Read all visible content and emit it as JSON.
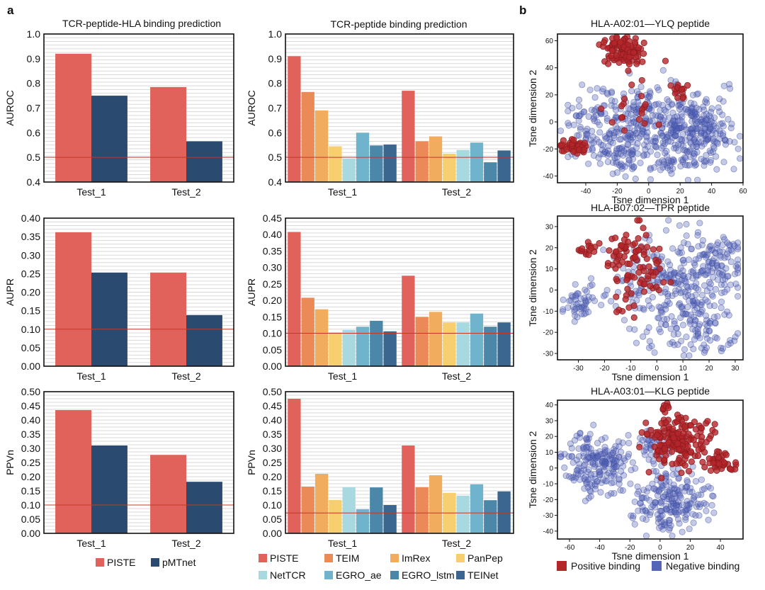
{
  "panel_labels": {
    "a": "a",
    "b": "b"
  },
  "chart_titles": {
    "left": "TCR-peptide-HLA binding prediction",
    "middle": "TCR-peptide binding prediction"
  },
  "colors": {
    "PISTE": "#E0625A",
    "pMTnet": "#2B4A6F",
    "TEIM": "#EB8A57",
    "ImRex": "#F2AC5E",
    "PanPep": "#F7CF6E",
    "NetTCR": "#A8D9E0",
    "EGRO_ae": "#6FB4CC",
    "EGRO_lstm": "#4A87A8",
    "TEINet": "#3A6690",
    "baseline": "#C0392B",
    "positive": "#B5262B",
    "negative": "#5565B8"
  },
  "legend_left": [
    "PISTE",
    "pMTnet"
  ],
  "legend_middle": [
    "PISTE",
    "TEIM",
    "ImRex",
    "PanPep",
    "NetTCR",
    "EGRO_ae",
    "EGRO_lstm",
    "TEINet"
  ],
  "legend_scatter": {
    "positive": "Positive binding",
    "negative": "Negative binding"
  },
  "chart_data": [
    {
      "id": "a1",
      "type": "bar",
      "title": "TCR-peptide-HLA binding prediction",
      "ylabel": "AUROC",
      "ylim": [
        0.4,
        1.0
      ],
      "yticks": [
        "0.4",
        "0.5",
        "0.6",
        "0.7",
        "0.8",
        "0.9",
        "1.0"
      ],
      "tick_values": [
        0.4,
        0.5,
        0.6,
        0.7,
        0.8,
        0.9,
        1.0
      ],
      "categories": [
        "Test_1",
        "Test_2"
      ],
      "baseline": 0.5,
      "series": [
        {
          "name": "PISTE",
          "values": [
            0.92,
            0.785
          ]
        },
        {
          "name": "pMTnet",
          "values": [
            0.75,
            0.565
          ]
        }
      ]
    },
    {
      "id": "a2",
      "type": "bar",
      "title": "TCR-peptide binding prediction",
      "ylabel": "AUROC",
      "ylim": [
        0.4,
        1.0
      ],
      "yticks": [
        "0.4",
        "0.5",
        "0.6",
        "0.7",
        "0.8",
        "0.9",
        "1.0"
      ],
      "tick_values": [
        0.4,
        0.5,
        0.6,
        0.7,
        0.8,
        0.9,
        1.0
      ],
      "categories": [
        "Test_1",
        "Test_2"
      ],
      "baseline": 0.5,
      "series": [
        {
          "name": "PISTE",
          "values": [
            0.91,
            0.77
          ]
        },
        {
          "name": "TEIM",
          "values": [
            0.765,
            0.565
          ]
        },
        {
          "name": "ImRex",
          "values": [
            0.69,
            0.585
          ]
        },
        {
          "name": "PanPep",
          "values": [
            0.545,
            0.515
          ]
        },
        {
          "name": "NetTCR",
          "values": [
            0.495,
            0.53
          ]
        },
        {
          "name": "EGRO_ae",
          "values": [
            0.6,
            0.56
          ]
        },
        {
          "name": "EGRO_lstm",
          "values": [
            0.548,
            0.48
          ]
        },
        {
          "name": "TEINet",
          "values": [
            0.552,
            0.528
          ]
        }
      ]
    },
    {
      "id": "a3",
      "type": "bar",
      "ylabel": "AUPR",
      "ylim": [
        0.0,
        0.4
      ],
      "yticks": [
        "0.00",
        "0.05",
        "0.10",
        "0.15",
        "0.20",
        "0.25",
        "0.30",
        "0.35",
        "0.40"
      ],
      "tick_values": [
        0,
        0.05,
        0.1,
        0.15,
        0.2,
        0.25,
        0.3,
        0.35,
        0.4
      ],
      "categories": [
        "Test_1",
        "Test_2"
      ],
      "baseline": 0.1,
      "series": [
        {
          "name": "PISTE",
          "values": [
            0.362,
            0.253
          ]
        },
        {
          "name": "pMTnet",
          "values": [
            0.253,
            0.138
          ]
        }
      ]
    },
    {
      "id": "a4",
      "type": "bar",
      "ylabel": "AUPR",
      "ylim": [
        0.0,
        0.45
      ],
      "yticks": [
        "0.00",
        "0.05",
        "0.10",
        "0.15",
        "0.20",
        "0.25",
        "0.30",
        "0.35",
        "0.40",
        "0.45"
      ],
      "tick_values": [
        0,
        0.05,
        0.1,
        0.15,
        0.2,
        0.25,
        0.3,
        0.35,
        0.4,
        0.45
      ],
      "categories": [
        "Test_1",
        "Test_2"
      ],
      "baseline": 0.1,
      "series": [
        {
          "name": "PISTE",
          "values": [
            0.408,
            0.275
          ]
        },
        {
          "name": "TEIM",
          "values": [
            0.208,
            0.15
          ]
        },
        {
          "name": "ImRex",
          "values": [
            0.173,
            0.165
          ]
        },
        {
          "name": "PanPep",
          "values": [
            0.103,
            0.133
          ]
        },
        {
          "name": "NetTCR",
          "values": [
            0.11,
            0.133
          ]
        },
        {
          "name": "EGRO_ae",
          "values": [
            0.12,
            0.16
          ]
        },
        {
          "name": "EGRO_lstm",
          "values": [
            0.138,
            0.12
          ]
        },
        {
          "name": "TEINet",
          "values": [
            0.106,
            0.133
          ]
        }
      ]
    },
    {
      "id": "a5",
      "type": "bar",
      "ylabel": "PPVn",
      "ylim": [
        0.0,
        0.5
      ],
      "yticks": [
        "0.00",
        "0.05",
        "0.10",
        "0.15",
        "0.20",
        "0.25",
        "0.30",
        "0.35",
        "0.40",
        "0.45",
        "0.50"
      ],
      "tick_values": [
        0,
        0.05,
        0.1,
        0.15,
        0.2,
        0.25,
        0.3,
        0.35,
        0.4,
        0.45,
        0.5
      ],
      "categories": [
        "Test_1",
        "Test_2"
      ],
      "baseline": 0.1,
      "series": [
        {
          "name": "PISTE",
          "values": [
            0.435,
            0.277
          ]
        },
        {
          "name": "pMTnet",
          "values": [
            0.31,
            0.182
          ]
        }
      ]
    },
    {
      "id": "a6",
      "type": "bar",
      "ylabel": "PPVn",
      "ylim": [
        0.0,
        0.5
      ],
      "yticks": [
        "0.00",
        "0.05",
        "0.10",
        "0.15",
        "0.20",
        "0.25",
        "0.30",
        "0.35",
        "0.40",
        "0.45",
        "0.50"
      ],
      "tick_values": [
        0,
        0.05,
        0.1,
        0.15,
        0.2,
        0.25,
        0.3,
        0.35,
        0.4,
        0.45,
        0.5
      ],
      "categories": [
        "Test_1",
        "Test_2"
      ],
      "baseline": 0.072,
      "series": [
        {
          "name": "PISTE",
          "values": [
            0.475,
            0.31
          ]
        },
        {
          "name": "TEIM",
          "values": [
            0.165,
            0.163
          ]
        },
        {
          "name": "ImRex",
          "values": [
            0.21,
            0.205
          ]
        },
        {
          "name": "PanPep",
          "values": [
            0.118,
            0.143
          ]
        },
        {
          "name": "NetTCR",
          "values": [
            0.163,
            0.133
          ]
        },
        {
          "name": "EGRO_ae",
          "values": [
            0.085,
            0.173
          ]
        },
        {
          "name": "EGRO_lstm",
          "values": [
            0.162,
            0.117
          ]
        },
        {
          "name": "TEINet",
          "values": [
            0.1,
            0.148
          ]
        }
      ]
    },
    {
      "id": "b1",
      "type": "scatter",
      "title": "HLA-A02:01—YLQ peptide",
      "xlabel": "Tsne dimension 1",
      "ylabel": "Tsne dimension 2",
      "xlim": [
        -58,
        60
      ],
      "ylim": [
        -45,
        65
      ],
      "xticks": [
        "-40",
        "-20",
        "0",
        "20",
        "40",
        "60"
      ],
      "x_tick_values": [
        -40,
        -20,
        0,
        20,
        40,
        60
      ],
      "yticks": [
        "-40",
        "-20",
        "0",
        "20",
        "40",
        "60"
      ],
      "y_tick_values": [
        -40,
        -20,
        0,
        20,
        40,
        60
      ],
      "seed": 11,
      "negative_clusters": [
        {
          "cx": 5,
          "cy": 0,
          "sx": 20,
          "sy": 14,
          "n": 320
        },
        {
          "cx": 35,
          "cy": -5,
          "sx": 10,
          "sy": 12,
          "n": 110
        },
        {
          "cx": -25,
          "cy": -20,
          "sx": 10,
          "sy": 8,
          "n": 70
        },
        {
          "cx": 15,
          "cy": -28,
          "sx": 14,
          "sy": 7,
          "n": 70
        },
        {
          "cx": -35,
          "cy": 5,
          "sx": 8,
          "sy": 10,
          "n": 50
        }
      ],
      "positive_clusters": [
        {
          "cx": -17,
          "cy": 53,
          "sx": 6,
          "sy": 5,
          "n": 110
        },
        {
          "cx": -48,
          "cy": -18,
          "sx": 4,
          "sy": 3,
          "n": 40
        },
        {
          "cx": 17,
          "cy": 23,
          "sx": 3,
          "sy": 3,
          "n": 15
        },
        {
          "cx": -5,
          "cy": 10,
          "sx": 10,
          "sy": 10,
          "n": 18
        }
      ]
    },
    {
      "id": "b2",
      "type": "scatter",
      "title": "HLA-B07:02—TPR peptide",
      "xlabel": "Tsne dimension 1",
      "ylabel": "Tsne dimension 2",
      "xlim": [
        -38,
        33
      ],
      "ylim": [
        -33,
        35
      ],
      "xticks": [
        "-30",
        "-20",
        "-10",
        "0",
        "10",
        "20",
        "30"
      ],
      "x_tick_values": [
        -30,
        -20,
        -10,
        0,
        10,
        20,
        30
      ],
      "yticks": [
        "-30",
        "-20",
        "-10",
        "0",
        "10",
        "20",
        "30"
      ],
      "y_tick_values": [
        -30,
        -20,
        -10,
        0,
        10,
        20,
        30
      ],
      "seed": 23,
      "negative_clusters": [
        {
          "cx": 5,
          "cy": 3,
          "sx": 12,
          "sy": 11,
          "n": 260
        },
        {
          "cx": 15,
          "cy": -18,
          "sx": 8,
          "sy": 7,
          "n": 90
        },
        {
          "cx": -30,
          "cy": -7,
          "sx": 3,
          "sy": 4,
          "n": 45
        },
        {
          "cx": 22,
          "cy": 15,
          "sx": 6,
          "sy": 8,
          "n": 70
        }
      ],
      "positive_clusters": [
        {
          "cx": -12,
          "cy": 15,
          "sx": 5,
          "sy": 7,
          "n": 70
        },
        {
          "cx": -27,
          "cy": 18,
          "sx": 2,
          "sy": 2,
          "n": 12
        },
        {
          "cx": -3,
          "cy": 5,
          "sx": 5,
          "sy": 4,
          "n": 20
        },
        {
          "cx": -12,
          "cy": -5,
          "sx": 5,
          "sy": 5,
          "n": 12
        }
      ]
    },
    {
      "id": "b3",
      "type": "scatter",
      "title": "HLA-A03:01—KLG peptide",
      "xlabel": "Tsne dimension 1",
      "ylabel": "Tsne dimension 2",
      "xlim": [
        -68,
        55
      ],
      "ylim": [
        -45,
        43
      ],
      "xticks": [
        "-60",
        "-40",
        "-20",
        "0",
        "20",
        "40"
      ],
      "x_tick_values": [
        -60,
        -40,
        -20,
        0,
        20,
        40
      ],
      "yticks": [
        "-40",
        "-30",
        "-20",
        "-10",
        "0",
        "10",
        "20",
        "30",
        "40"
      ],
      "y_tick_values": [
        -40,
        -30,
        -20,
        -10,
        0,
        10,
        20,
        30,
        40
      ],
      "seed": 37,
      "negative_clusters": [
        {
          "cx": -42,
          "cy": 3,
          "sx": 10,
          "sy": 10,
          "n": 200
        },
        {
          "cx": 8,
          "cy": -20,
          "sx": 12,
          "sy": 9,
          "n": 200
        },
        {
          "cx": -5,
          "cy": 15,
          "sx": 6,
          "sy": 8,
          "n": 40
        }
      ],
      "positive_clusters": [
        {
          "cx": 12,
          "cy": 17,
          "sx": 10,
          "sy": 8,
          "n": 170
        },
        {
          "cx": 40,
          "cy": 3,
          "sx": 6,
          "sy": 4,
          "n": 40
        },
        {
          "cx": 3,
          "cy": 38,
          "sx": 2,
          "sy": 2,
          "n": 8
        }
      ]
    }
  ]
}
